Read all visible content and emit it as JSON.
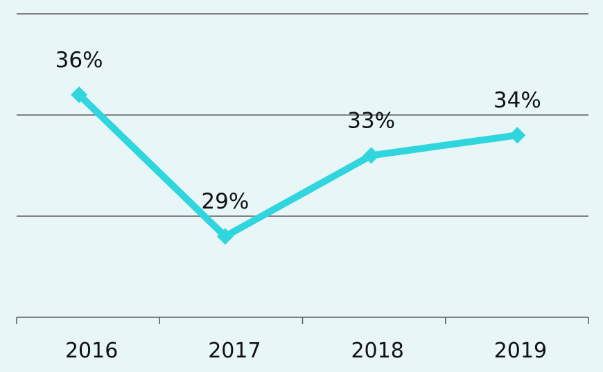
{
  "chart_data": {
    "type": "line",
    "categories": [
      "2016",
      "2017",
      "2018",
      "2019"
    ],
    "series": [
      {
        "values": [
          36,
          29,
          33,
          34
        ],
        "labels": [
          "36%",
          "29%",
          "33%",
          "34%"
        ],
        "color": "#2fd6dd",
        "marker": "diamond"
      }
    ],
    "ylim": [
      25,
      40
    ],
    "gridlines": [
      30,
      35,
      40
    ],
    "grid": true,
    "legend": "none",
    "background": "#e8f6f8",
    "axis_color": "#5c5c5c"
  }
}
